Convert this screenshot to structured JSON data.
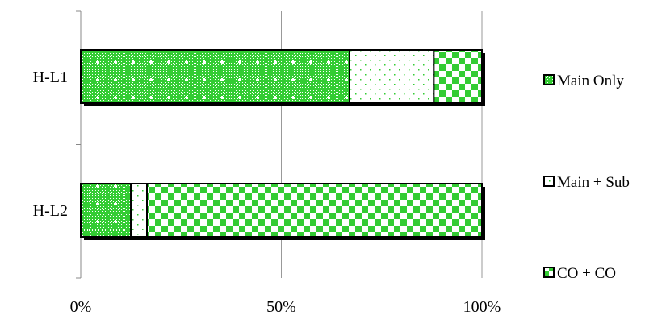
{
  "chart_data": {
    "type": "bar",
    "orientation": "horizontal",
    "stacked": true,
    "percent": true,
    "categories": [
      "H-L1",
      "H-L2"
    ],
    "series": [
      {
        "name": "Main Only",
        "values": [
          67,
          12.5
        ],
        "pattern": "dotted-grid",
        "color": "#33cc33"
      },
      {
        "name": "Main + Sub",
        "values": [
          21,
          4
        ],
        "pattern": "sparse-dots",
        "color": "#33cc33"
      },
      {
        "name": "CO + CO",
        "values": [
          12,
          83.5
        ],
        "pattern": "checker",
        "color": "#33cc33"
      }
    ],
    "xticks": [
      "0%",
      "50%",
      "100%"
    ],
    "xlim": [
      0,
      100
    ],
    "grid": "vertical",
    "legend": "right",
    "title": "",
    "xlabel": "",
    "ylabel": ""
  }
}
